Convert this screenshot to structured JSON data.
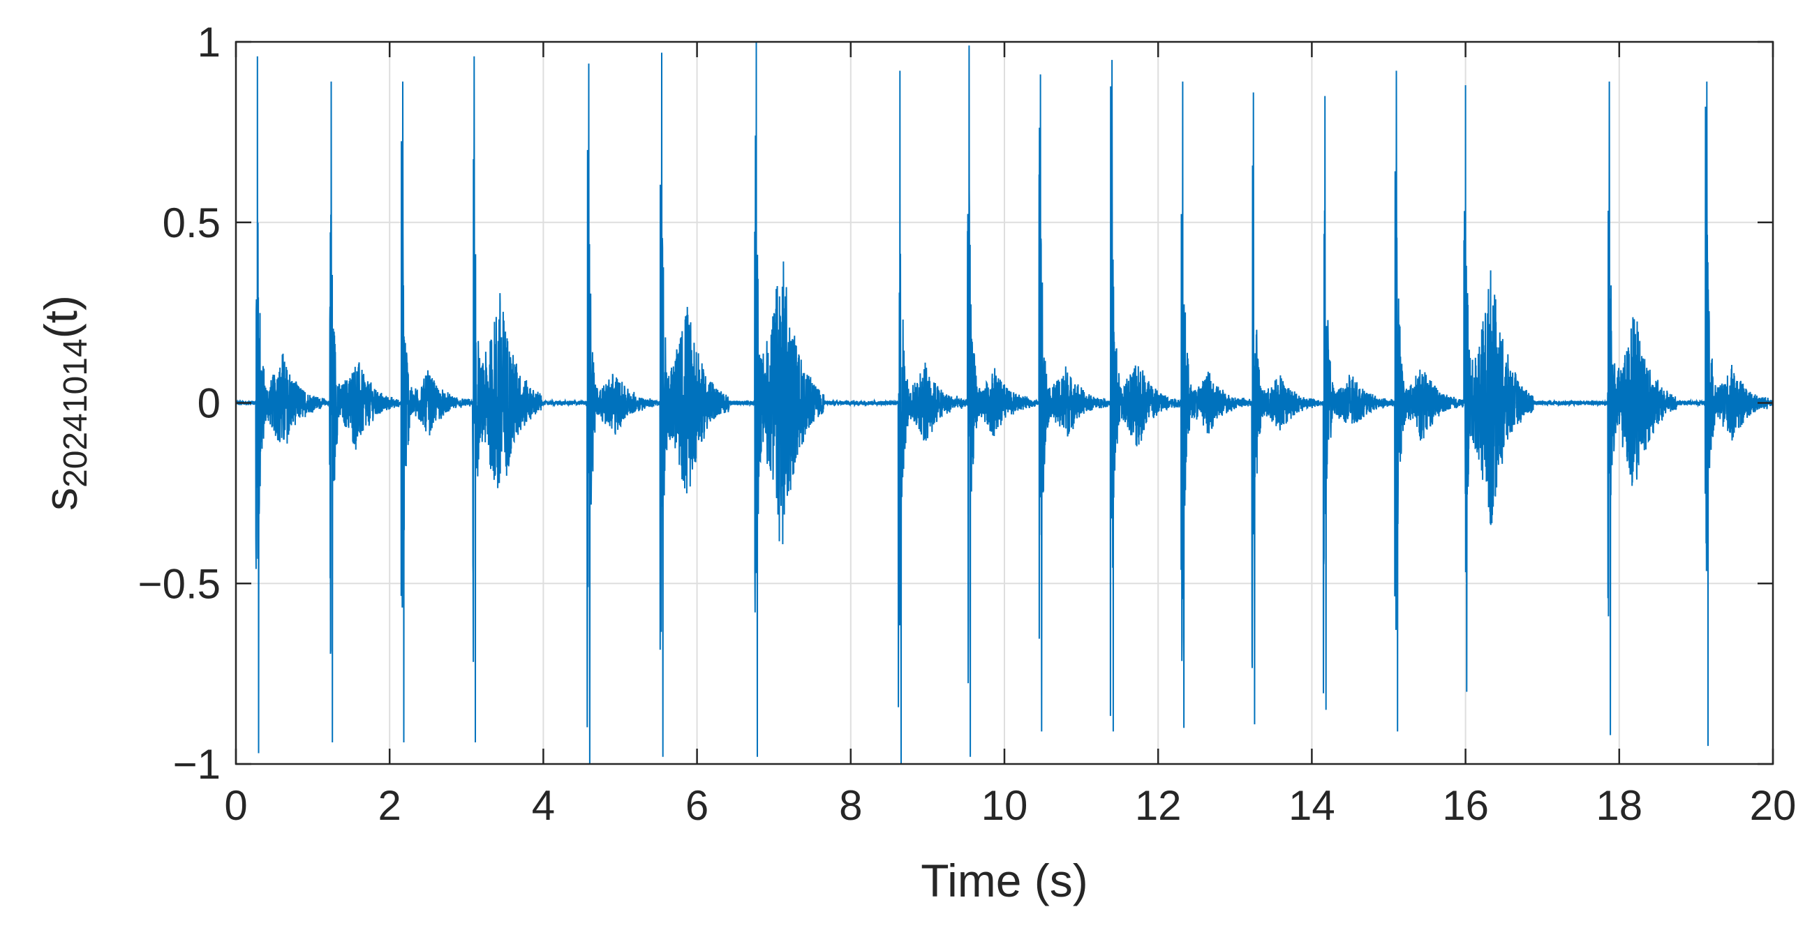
{
  "chart_data": {
    "type": "line",
    "title": "",
    "xlabel": "Time (s)",
    "ylabel": {
      "base": "s",
      "subscript": "20241014",
      "suffix": "(t)"
    },
    "xlim": [
      0,
      20
    ],
    "ylim": [
      -1,
      1
    ],
    "xticks": [
      0,
      2,
      4,
      6,
      8,
      10,
      12,
      14,
      16,
      18,
      20
    ],
    "yticks": [
      -1,
      -0.5,
      0,
      0.5,
      1
    ],
    "xtick_labels": [
      "0",
      "2",
      "4",
      "6",
      "8",
      "10",
      "12",
      "14",
      "16",
      "18",
      "20"
    ],
    "ytick_labels": [
      "−1",
      "−0.5",
      "0",
      "0.5",
      "1"
    ],
    "grid": true,
    "box": true,
    "series_color": "#0072BD",
    "series": [
      {
        "description": "repeating impulsive bursts; each burst: onset time (s), positive peak, negative peak, secondary tail strength (0-1)",
        "bursts": [
          {
            "t": 0.26,
            "pos": 0.96,
            "neg": -0.97,
            "tail": 0.15
          },
          {
            "t": 1.22,
            "pos": 0.89,
            "neg": -0.94,
            "tail": 0.15
          },
          {
            "t": 2.15,
            "pos": 0.89,
            "neg": -0.94,
            "tail": 0.1
          },
          {
            "t": 3.08,
            "pos": 0.96,
            "neg": -0.94,
            "tail": 0.35
          },
          {
            "t": 4.57,
            "pos": 0.94,
            "neg": -1.0,
            "tail": 0.1
          },
          {
            "t": 5.52,
            "pos": 0.97,
            "neg": -0.98,
            "tail": 0.3
          },
          {
            "t": 6.75,
            "pos": 1.0,
            "neg": -0.98,
            "tail": 0.45
          },
          {
            "t": 8.62,
            "pos": 0.92,
            "neg": -1.0,
            "tail": 0.12
          },
          {
            "t": 9.52,
            "pos": 0.99,
            "neg": -0.98,
            "tail": 0.1
          },
          {
            "t": 10.45,
            "pos": 0.91,
            "neg": -0.91,
            "tail": 0.12
          },
          {
            "t": 11.38,
            "pos": 0.95,
            "neg": -0.91,
            "tail": 0.15
          },
          {
            "t": 12.3,
            "pos": 0.89,
            "neg": -0.9,
            "tail": 0.1
          },
          {
            "t": 13.22,
            "pos": 0.86,
            "neg": -0.89,
            "tail": 0.1
          },
          {
            "t": 14.15,
            "pos": 0.85,
            "neg": -0.85,
            "tail": 0.1
          },
          {
            "t": 15.08,
            "pos": 0.92,
            "neg": -0.91,
            "tail": 0.12
          },
          {
            "t": 15.98,
            "pos": 0.88,
            "neg": -0.8,
            "tail": 0.45
          },
          {
            "t": 17.85,
            "pos": 0.89,
            "neg": -0.92,
            "tail": 0.3
          },
          {
            "t": 19.12,
            "pos": 0.89,
            "neg": -0.95,
            "tail": 0.12
          }
        ]
      }
    ]
  }
}
